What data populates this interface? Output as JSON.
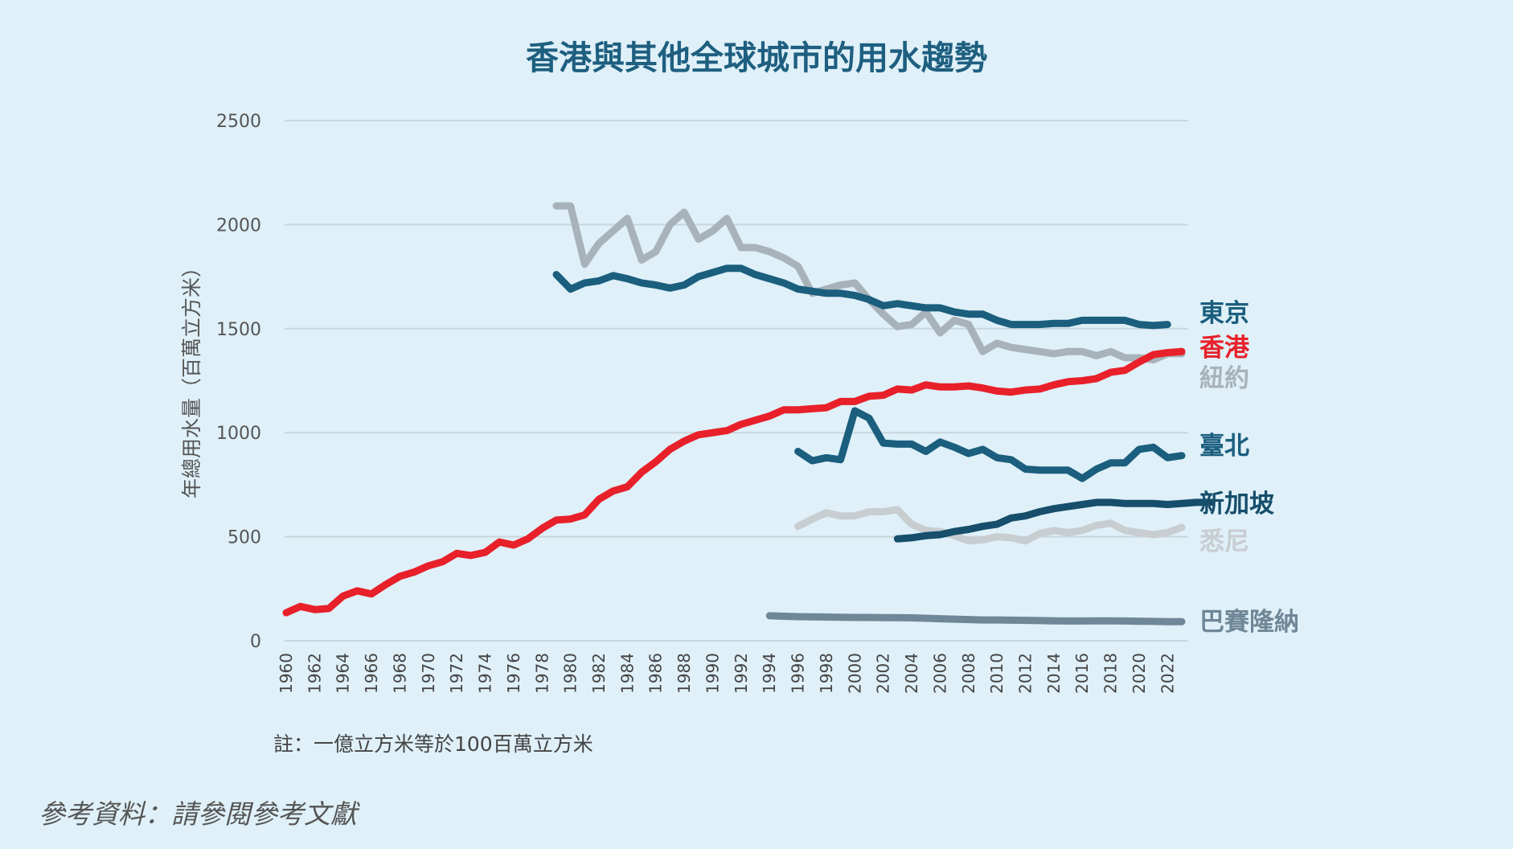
{
  "chart_data": {
    "type": "line",
    "title": "香港與其他全球城市的用水趨勢",
    "ylabel": "年總用水量（百萬立方米）",
    "xlabel": "",
    "ylim": [
      0,
      2500
    ],
    "yticks": [
      "0",
      "500",
      "1000",
      "1500",
      "2000",
      "2500"
    ],
    "xlim": [
      1960,
      2023
    ],
    "xticks": [
      "1960",
      "1962",
      "1964",
      "1966",
      "1968",
      "1970",
      "1972",
      "1974",
      "1976",
      "1978",
      "1980",
      "1982",
      "1984",
      "1986",
      "1988",
      "1990",
      "1992",
      "1994",
      "1996",
      "1998",
      "2000",
      "2002",
      "2004",
      "2006",
      "2008",
      "2010",
      "2012",
      "2014",
      "2016",
      "2018",
      "2020",
      "2022"
    ],
    "grid": true,
    "legend_placement": "right, inline labels",
    "series": [
      {
        "name": "香港",
        "color": "#e8202a",
        "start_year": 1960,
        "values": [
          135,
          165,
          150,
          155,
          215,
          240,
          225,
          270,
          310,
          330,
          360,
          380,
          420,
          410,
          425,
          475,
          460,
          490,
          540,
          580,
          585,
          605,
          680,
          720,
          740,
          810,
          860,
          920,
          960,
          990,
          1000,
          1010,
          1040,
          1060,
          1080,
          1110,
          1110,
          1115,
          1120,
          1150,
          1150,
          1175,
          1180,
          1210,
          1205,
          1230,
          1220,
          1220,
          1225,
          1215,
          1200,
          1195,
          1205,
          1210,
          1230,
          1245,
          1250,
          1260,
          1290,
          1300,
          1340,
          1375,
          1385,
          1390
        ]
      },
      {
        "name": "東京",
        "color": "#1b5e7e",
        "start_year": 1979,
        "values": [
          1760,
          1690,
          1720,
          1730,
          1755,
          1740,
          1720,
          1710,
          1695,
          1710,
          1750,
          1770,
          1790,
          1790,
          1760,
          1740,
          1720,
          1690,
          1680,
          1670,
          1670,
          1660,
          1640,
          1610,
          1620,
          1610,
          1600,
          1600,
          1580,
          1570,
          1570,
          1540,
          1520,
          1520,
          1520,
          1525,
          1525,
          1540,
          1540,
          1540,
          1540,
          1520,
          1515,
          1520
        ]
      },
      {
        "name": "紐約",
        "color": "#a8b2b9",
        "start_year": 1979,
        "values": [
          2090,
          2090,
          1810,
          1910,
          1970,
          2030,
          1830,
          1870,
          2000,
          2060,
          1930,
          1970,
          2030,
          1890,
          1890,
          1870,
          1840,
          1800,
          1670,
          1690,
          1710,
          1720,
          1640,
          1570,
          1510,
          1520,
          1580,
          1480,
          1540,
          1520,
          1390,
          1430,
          1410,
          1400,
          1390,
          1380,
          1390,
          1390,
          1370,
          1390,
          1360,
          1360,
          1350,
          1380,
          1380
        ]
      },
      {
        "name": "臺北",
        "color": "#1b5e7e",
        "start_year": 1996,
        "values": [
          910,
          865,
          880,
          870,
          1105,
          1070,
          950,
          945,
          945,
          910,
          955,
          930,
          900,
          920,
          880,
          870,
          825,
          820,
          820,
          820,
          780,
          825,
          855,
          855,
          920,
          930,
          880,
          890
        ]
      },
      {
        "name": "新加坡",
        "color": "#164e6b",
        "start_year": 2003,
        "values": [
          490,
          495,
          505,
          510,
          525,
          535,
          550,
          560,
          590,
          600,
          620,
          635,
          645,
          655,
          665,
          665,
          660,
          660,
          660,
          655,
          660,
          665,
          665
        ]
      },
      {
        "name": "悉尼",
        "color": "#c8cdd1",
        "start_year": 1996,
        "values": [
          550,
          585,
          615,
          600,
          600,
          620,
          620,
          630,
          560,
          530,
          525,
          505,
          480,
          485,
          500,
          495,
          480,
          515,
          530,
          520,
          530,
          555,
          565,
          530,
          520,
          510,
          520,
          545
        ]
      },
      {
        "name": "巴賽隆納",
        "color": "#6f8797",
        "start_year": 1994,
        "values": [
          120,
          118,
          116,
          115,
          114,
          113,
          112,
          112,
          111,
          111,
          110,
          108,
          106,
          104,
          102,
          100,
          100,
          99,
          98,
          97,
          96,
          95,
          95,
          96,
          96,
          95,
          94,
          93,
          92,
          92
        ]
      }
    ],
    "legend_labels": [
      {
        "name": "東京",
        "color": "#1b5e7e"
      },
      {
        "name": "香港",
        "color": "#e8202a"
      },
      {
        "name": "紐約",
        "color": "#a8b2b9"
      },
      {
        "name": "臺北",
        "color": "#1b5e7e"
      },
      {
        "name": "新加坡",
        "color": "#164e6b"
      },
      {
        "name": "悉尼",
        "color": "#c8cdd1"
      },
      {
        "name": "巴賽隆納",
        "color": "#6f8797"
      }
    ],
    "note": "註：一億立方米等於100百萬立方米",
    "source": "參考資料：請參閱參考文獻"
  }
}
